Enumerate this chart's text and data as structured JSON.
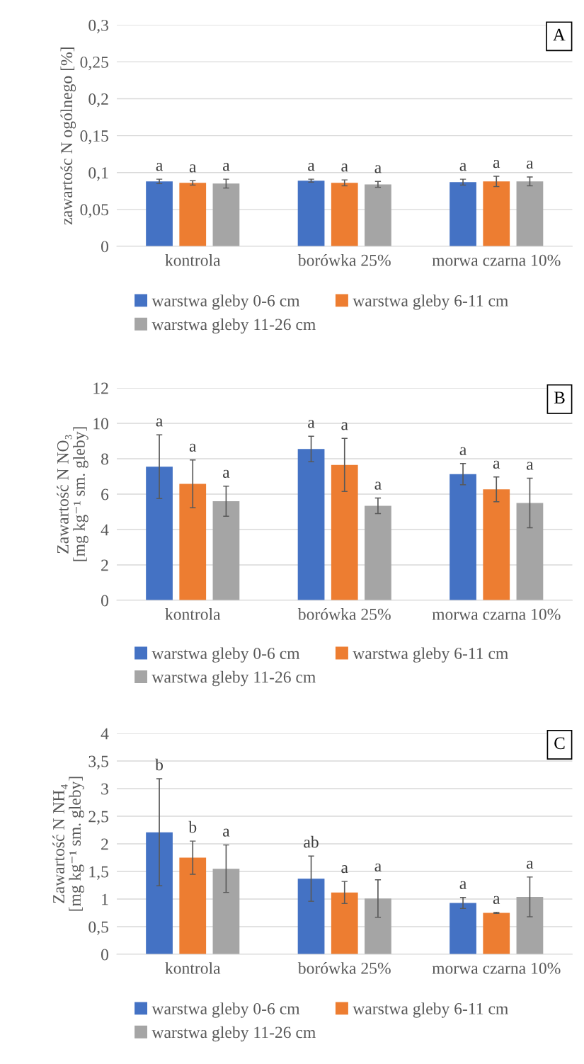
{
  "chart_data": [
    {
      "type": "bar",
      "ylabel": "zawartośc N ogólnego [%]",
      "categories": [
        "kontrola",
        "borówka 25%",
        "morwa czarna 10%"
      ],
      "ylim": [
        0,
        0.3
      ],
      "yticks": [
        0,
        {
          "value": 0.05,
          "label": "0,05"
        },
        {
          "value": 0.1,
          "label": "0,1"
        },
        {
          "value": 0.15,
          "label": "0,15"
        },
        {
          "value": 0.2,
          "label": "0,2"
        },
        {
          "value": 0.25,
          "label": "0,25"
        },
        {
          "value": 0.3,
          "label": "0,3"
        }
      ],
      "grid": "y",
      "legend": "bottom",
      "annotations": [
        "A",
        "a",
        "a",
        "a",
        "a",
        "a",
        "a",
        "a",
        "a",
        "a"
      ],
      "series": [
        {
          "name": "warstwa gleby 0-6 cm",
          "color": "#4472c4",
          "values": [
            0.088,
            0.089,
            0.087
          ],
          "errors": [
            0.003,
            0.002,
            0.004
          ]
        },
        {
          "name": "warstwa gleby 6-11 cm",
          "color": "#ed7d31",
          "values": [
            0.086,
            0.086,
            0.088
          ],
          "errors": [
            0.003,
            0.004,
            0.007
          ]
        },
        {
          "name": "warstwa gleby 11-26 cm",
          "color": "#a5a5a5",
          "values": [
            0.085,
            0.084,
            0.088
          ],
          "errors": [
            0.006,
            0.004,
            0.006
          ]
        }
      ]
    },
    {
      "type": "bar",
      "ylabel": "Zawartość N NO₃\n[mg kg⁻¹ sm. gleby]",
      "categories": [
        "kontrola",
        "borówka 25%",
        "morwa czarna 10%"
      ],
      "ylim": [
        0,
        12
      ],
      "yticks": [
        0,
        2,
        4,
        6,
        8,
        10,
        12
      ],
      "grid": "y",
      "legend": "bottom",
      "annotations": [
        "B",
        "a",
        "a",
        "a",
        "a",
        "a",
        "a",
        "a",
        "a",
        "a"
      ],
      "series": [
        {
          "name": "warstwa gleby 0-6 cm",
          "color": "#4472c4",
          "values": [
            7.55,
            8.55,
            7.13
          ],
          "errors": [
            1.8,
            0.72,
            0.6
          ]
        },
        {
          "name": "warstwa gleby 6-11 cm",
          "color": "#ed7d31",
          "values": [
            6.58,
            7.65,
            6.27
          ],
          "errors": [
            1.35,
            1.5,
            0.7
          ]
        },
        {
          "name": "warstwa gleby 11-26 cm",
          "color": "#a5a5a5",
          "values": [
            5.6,
            5.34,
            5.5
          ],
          "errors": [
            0.85,
            0.44,
            1.4
          ]
        }
      ]
    },
    {
      "type": "bar",
      "ylabel": "Zawartość N NH₄\n[mg kg⁻¹ sm. gleby]",
      "categories": [
        "kontrola",
        "borówka 25%",
        "morwa czarna 10%"
      ],
      "ylim": [
        0,
        4
      ],
      "yticks": [
        0,
        {
          "value": 0.5,
          "label": "0,5"
        },
        1,
        {
          "value": 1.5,
          "label": "1,5"
        },
        2,
        {
          "value": 2.5,
          "label": "2,5"
        },
        3,
        {
          "value": 3.5,
          "label": "3,5"
        },
        4
      ],
      "grid": "y",
      "legend": "bottom",
      "annotations": [
        "C",
        "b",
        "b",
        "a",
        "ab",
        "a",
        "a",
        "a",
        "a",
        "a"
      ],
      "series": [
        {
          "name": "warstwa gleby 0-6 cm",
          "color": "#4472c4",
          "values": [
            2.21,
            1.37,
            0.93
          ],
          "errors": [
            0.97,
            0.41,
            0.1
          ]
        },
        {
          "name": "warstwa gleby 6-11 cm",
          "color": "#ed7d31",
          "values": [
            1.75,
            1.12,
            0.75
          ],
          "errors": [
            0.3,
            0.2,
            0.01
          ]
        },
        {
          "name": "warstwa gleby 11-26 cm",
          "color": "#a5a5a5",
          "values": [
            1.55,
            1.01,
            1.04
          ],
          "errors": [
            0.43,
            0.34,
            0.36
          ]
        }
      ]
    }
  ]
}
